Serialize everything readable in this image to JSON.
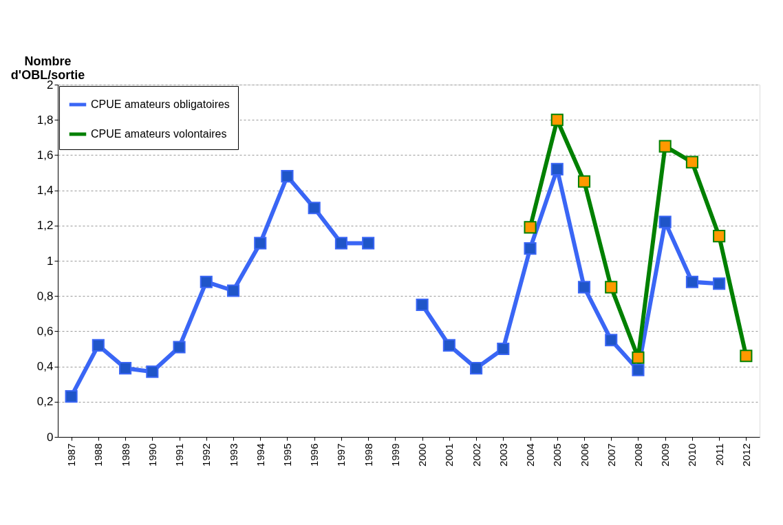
{
  "chart_data": {
    "type": "line",
    "ylabel": "Nombre d'OBL/sortie",
    "categories": [
      "1987",
      "1988",
      "1989",
      "1990",
      "1991",
      "1992",
      "1993",
      "1994",
      "1995",
      "1996",
      "1997",
      "1998",
      "1999",
      "2000",
      "2001",
      "2002",
      "2003",
      "2004",
      "2005",
      "2006",
      "2007",
      "2008",
      "2009",
      "2010",
      "2011",
      "2012"
    ],
    "series": [
      {
        "name": "CPUE amateurs obligatoires",
        "color": "#3a66f5",
        "colors": [
          "#1f55c8",
          "#1f55c8",
          "#1f55c8",
          "#1f55c8",
          "#1f55c8",
          "#1f55c8",
          "#1f55c8",
          "#1f55c8",
          "#1f55c8",
          "#1f55c8",
          "#1f55c8",
          "#1f55c8",
          null,
          "#1f55c8",
          "#1f55c8",
          "#1f55c8",
          "#1f55c8",
          "#1f55c8",
          "#1f55c8",
          "#1f55c8",
          "#1f55c8",
          "#1f55c8",
          "#1f55c8",
          "#1f55c8",
          "#1f55c8",
          null
        ],
        "values": [
          0.23,
          0.52,
          0.39,
          0.37,
          0.51,
          0.88,
          0.83,
          1.1,
          1.48,
          1.3,
          1.1,
          1.1,
          null,
          0.75,
          0.52,
          0.39,
          0.5,
          1.07,
          1.52,
          0.85,
          0.55,
          0.38,
          1.22,
          0.88,
          0.87,
          null
        ]
      },
      {
        "name": "CPUE amateurs volontaires",
        "color": "#008000",
        "colors": [
          null,
          null,
          null,
          null,
          null,
          null,
          null,
          null,
          null,
          null,
          null,
          null,
          null,
          null,
          null,
          null,
          null,
          "#ff9900",
          "#ff9900",
          "#ff9900",
          "#ff9900",
          "#ff9900",
          "#ff9900",
          "#ff9900",
          "#ff9900",
          "#ff9900"
        ],
        "values": [
          null,
          null,
          null,
          null,
          null,
          null,
          null,
          null,
          null,
          null,
          null,
          null,
          null,
          null,
          null,
          null,
          null,
          1.19,
          1.8,
          1.45,
          0.85,
          0.45,
          1.65,
          1.56,
          1.14,
          0.46
        ]
      }
    ],
    "ylim": [
      0,
      2
    ],
    "yticks": [
      0,
      {
        "value": 0.2,
        "label": "0,2"
      },
      {
        "value": 0.4,
        "label": "0,4"
      },
      {
        "value": 0.6,
        "label": "0,6"
      },
      {
        "value": 0.8,
        "label": "0,8"
      },
      1,
      {
        "value": 1.2,
        "label": "1,2"
      },
      {
        "value": 1.4,
        "label": "1,4"
      },
      {
        "value": 1.6,
        "label": "1,6"
      },
      {
        "value": 1.8,
        "label": "1,8"
      },
      2
    ],
    "grid": "y",
    "legend": "top left",
    "marker": "square",
    "line_style": "solid"
  }
}
